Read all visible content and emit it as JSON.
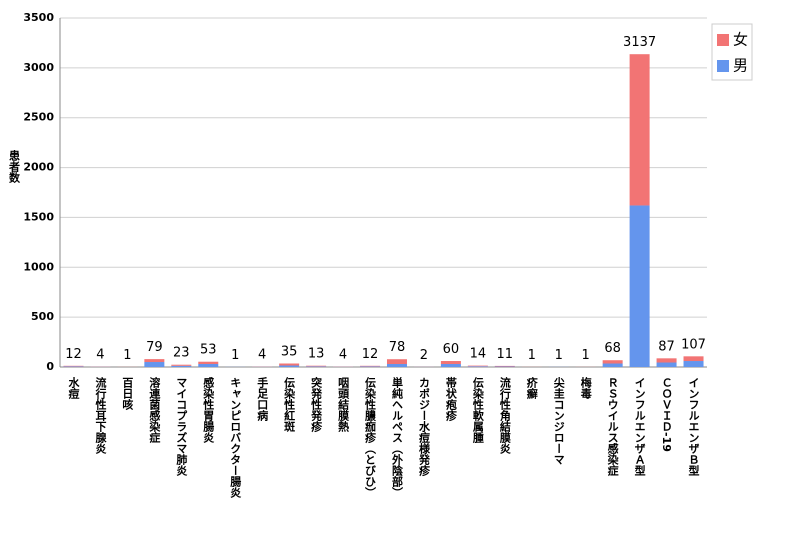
{
  "chart_data": {
    "type": "bar",
    "stacked": true,
    "y_label": "患者数",
    "categories": [
      "水痘",
      "流行性耳下腺炎",
      "百日咳",
      "溶連菌感染症",
      "マイコプラズマ肺炎",
      "感染性胃腸炎",
      "キャンピロバクター腸炎",
      "手足口病",
      "伝染性紅斑",
      "突発性発疹",
      "咽頭結膜熱",
      "伝染性膿痂疹（とびひ）",
      "単純ヘルペス（外陰部）",
      "カポジー水痘様発疹",
      "帯状疱疹",
      "伝染性軟属腫",
      "流行性角結膜炎",
      "疥癬",
      "尖圭コンジローマ",
      "梅毒",
      "ＲＳウイルス感染症",
      "インフルエンザＡ型",
      "ＣＯＶＩＤ-19",
      "インフルエンザＢ型"
    ],
    "series": [
      {
        "name": "男",
        "color": "#6495ed",
        "values": [
          6,
          2,
          0,
          50,
          12,
          30,
          1,
          2,
          15,
          6,
          2,
          6,
          30,
          1,
          30,
          7,
          5,
          0,
          1,
          0,
          35,
          1620,
          45,
          60
        ]
      },
      {
        "name": "女",
        "color": "#f27474",
        "values": [
          6,
          2,
          1,
          29,
          11,
          23,
          0,
          2,
          20,
          7,
          2,
          6,
          48,
          1,
          30,
          7,
          6,
          1,
          0,
          1,
          33,
          1517,
          42,
          47
        ]
      }
    ],
    "totals": [
      12,
      4,
      1,
      79,
      23,
      53,
      1,
      4,
      35,
      13,
      4,
      12,
      78,
      2,
      60,
      14,
      11,
      1,
      1,
      1,
      68,
      3137,
      87,
      107
    ],
    "ylim": [
      0,
      3500
    ],
    "yticks": [
      0,
      500,
      1000,
      1500,
      2000,
      2500,
      3000,
      3500
    ],
    "grid": true,
    "legend": "top-right"
  }
}
